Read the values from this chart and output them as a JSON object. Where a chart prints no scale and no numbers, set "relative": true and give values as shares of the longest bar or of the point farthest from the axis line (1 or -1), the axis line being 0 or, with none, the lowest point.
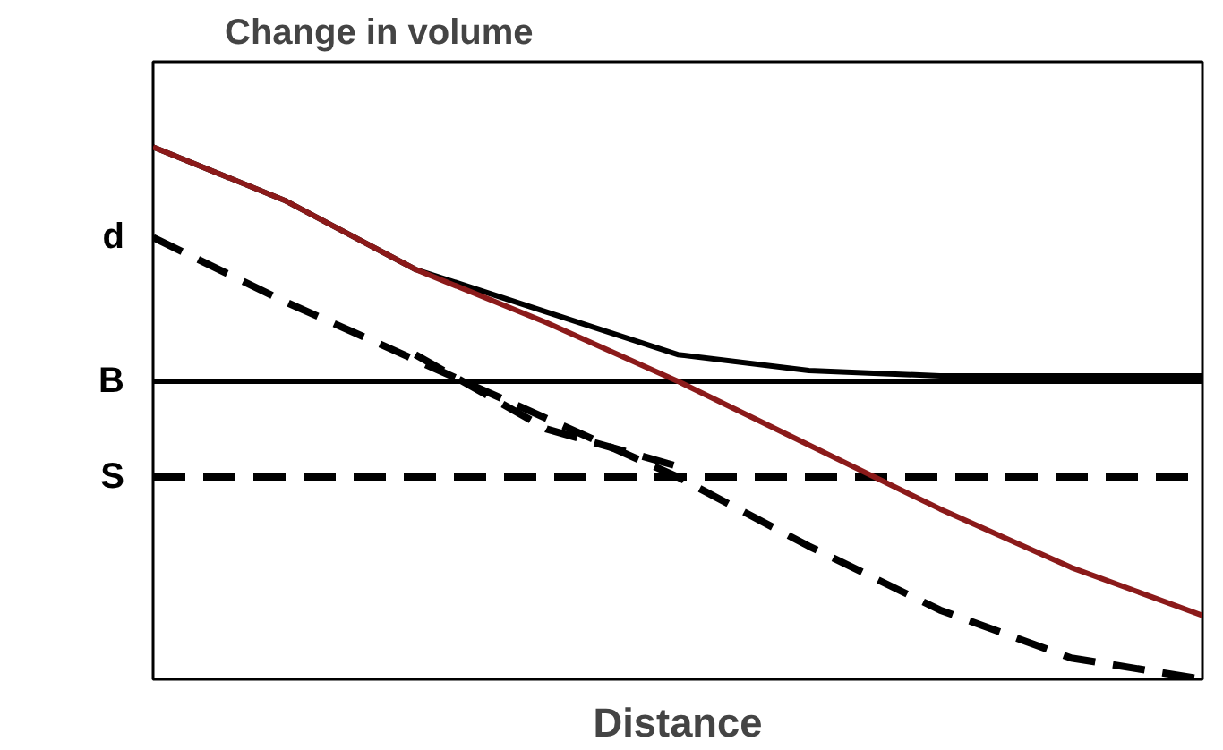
{
  "chart_data": {
    "type": "line",
    "title": "Change in volume",
    "xlabel": "Distance",
    "relative": true,
    "grid": false,
    "categories": [
      null,
      null,
      null,
      null,
      null,
      null,
      null,
      null,
      null
    ],
    "series": [
      {
        "color": "#000000",
        "line_style": "solid",
        "values": [
          1,
          0.9,
          0.77,
          0.69,
          0.61,
          0.58,
          0.57,
          0.57,
          0.57
        ]
      },
      {
        "name": "B",
        "color": "#000000",
        "line_style": "solid",
        "values": [
          0.56,
          0.56,
          0.56,
          0.56,
          0.56,
          0.56,
          0.56,
          0.56,
          0.56
        ]
      },
      {
        "name": "S",
        "color": "#000000",
        "line_style": "dashed",
        "values": [
          0.38,
          0.38,
          0.38,
          0.38,
          0.38,
          0.38,
          0.38,
          0.38,
          0.38
        ]
      },
      {
        "name": "d",
        "color": "#000000",
        "line_style": "dashed",
        "values": [
          0.83,
          0.71,
          0.6,
          0.49,
          0.38,
          0.25,
          0.13,
          0.04,
          0
        ]
      },
      {
        "color": "#000000",
        "line_style": "dashed",
        "values": [
          null,
          null,
          0.61,
          0.47,
          0.4,
          null,
          null,
          null,
          null
        ]
      },
      {
        "color": "#8b1a1a",
        "line_style": "solid",
        "values": [
          1,
          0.9,
          0.77,
          0.67,
          0.56,
          0.44,
          0.32,
          0.21,
          0.12
        ]
      }
    ]
  }
}
